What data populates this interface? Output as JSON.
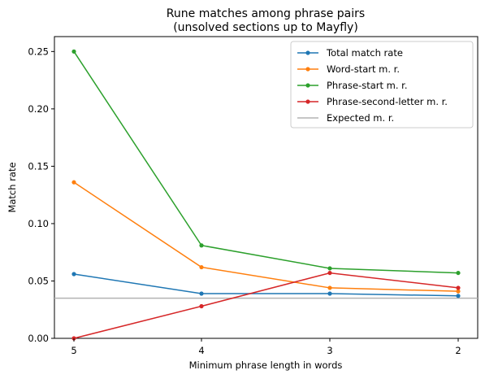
{
  "chart_data": {
    "type": "line",
    "title": "Rune matches among phrase pairs",
    "subtitle": "(unsolved sections up to Mayfly)",
    "xlabel": "Minimum phrase length in words",
    "ylabel": "Match rate",
    "x": [
      5,
      4,
      3,
      2
    ],
    "x_ticks": [
      "5",
      "4",
      "3",
      "2"
    ],
    "y_ticks": [
      "0.00",
      "0.05",
      "0.10",
      "0.15",
      "0.20",
      "0.25"
    ],
    "ylim": [
      0,
      0.263
    ],
    "grid": false,
    "legend_position": "top-right",
    "series": [
      {
        "name": "Total match rate",
        "color": "#1f77b4",
        "values": [
          0.056,
          0.039,
          0.039,
          0.037
        ]
      },
      {
        "name": "Word-start m. r.",
        "color": "#ff7f0e",
        "values": [
          0.136,
          0.062,
          0.044,
          0.041
        ]
      },
      {
        "name": "Phrase-start m. r.",
        "color": "#2ca02c",
        "values": [
          0.25,
          0.081,
          0.061,
          0.057
        ]
      },
      {
        "name": "Phrase-second-letter m. r.",
        "color": "#d62728",
        "values": [
          0.0,
          0.028,
          0.057,
          0.044
        ]
      }
    ],
    "reference_line": {
      "name": "Expected m. r.",
      "color": "#b3b3b3",
      "value": 0.035
    }
  }
}
